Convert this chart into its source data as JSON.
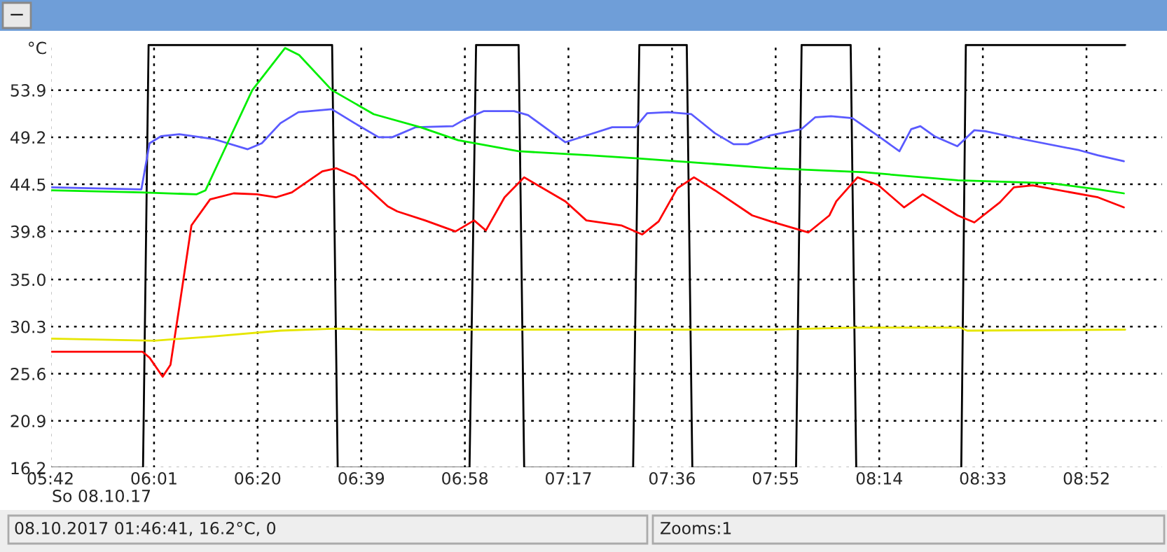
{
  "chart_data": {
    "type": "line",
    "ylabel": "°C",
    "annotations": [
      "So 08.10.17",
      "08.10.2017 01:46:41, 16.2°C, 0",
      "Zooms:1",
      "−"
    ],
    "xlim": [
      5.7,
      9.1
    ],
    "xticks": [
      {
        "value": 5.7,
        "label": "05:42"
      },
      {
        "value": 6.0167,
        "label": "06:01"
      },
      {
        "value": 6.3333,
        "label": "06:20"
      },
      {
        "value": 6.65,
        "label": "06:39"
      },
      {
        "value": 6.9667,
        "label": "06:58"
      },
      {
        "value": 7.2833,
        "label": "07:17"
      },
      {
        "value": 7.6,
        "label": "07:36"
      },
      {
        "value": 7.9167,
        "label": "07:55"
      },
      {
        "value": 8.2333,
        "label": "08:14"
      },
      {
        "value": 8.55,
        "label": "08:33"
      },
      {
        "value": 8.8667,
        "label": "08:52"
      }
    ],
    "ylim": [
      16.2,
      58.6
    ],
    "yticks": [
      16.2,
      20.9,
      25.6,
      30.3,
      {
        "value": 35,
        "label": "35.0"
      },
      39.8,
      44.5,
      49.2,
      53.9
    ],
    "grid": true,
    "line_style": "solid",
    "marker": "none",
    "series": [
      {
        "color": "#000000",
        "x": [
          5.7,
          5.983,
          6.0,
          6.561,
          6.578,
          6.981,
          7.001,
          7.131,
          7.148,
          7.481,
          7.5,
          7.645,
          7.662,
          7.979,
          7.996,
          8.146,
          8.163,
          8.484,
          8.498,
          8.985
        ],
        "values": [
          16.2,
          16.2,
          58.4,
          58.4,
          16.2,
          16.2,
          58.4,
          58.4,
          16.2,
          16.2,
          58.4,
          58.4,
          16.2,
          16.2,
          58.4,
          58.4,
          16.2,
          16.2,
          58.4,
          58.4
        ]
      },
      {
        "color": "#5a5aff",
        "x": [
          5.7,
          5.978,
          6.003,
          6.038,
          6.094,
          6.201,
          6.303,
          6.346,
          6.403,
          6.458,
          6.56,
          6.63,
          6.703,
          6.745,
          6.817,
          6.93,
          6.967,
          7.024,
          7.117,
          7.16,
          7.274,
          7.331,
          7.417,
          7.488,
          7.524,
          7.588,
          7.659,
          7.731,
          7.788,
          7.831,
          7.902,
          7.995,
          8.038,
          8.086,
          8.151,
          8.231,
          8.295,
          8.331,
          8.359,
          8.402,
          8.472,
          8.524,
          8.558,
          8.673,
          8.845,
          8.901,
          8.981
        ],
        "values": [
          44.2,
          44.0,
          48.6,
          49.3,
          49.5,
          49.0,
          48.0,
          48.6,
          50.6,
          51.7,
          52.0,
          50.6,
          49.2,
          49.2,
          50.2,
          50.3,
          51.0,
          51.8,
          51.8,
          51.4,
          48.7,
          49.3,
          50.2,
          50.2,
          51.6,
          51.7,
          51.5,
          49.6,
          48.5,
          48.5,
          49.4,
          50.0,
          51.2,
          51.3,
          51.1,
          49.3,
          47.8,
          50.0,
          50.3,
          49.3,
          48.3,
          49.9,
          49.8,
          49.0,
          47.9,
          47.4,
          46.8
        ]
      },
      {
        "color": "#00ee00",
        "x": [
          5.7,
          5.974,
          6.146,
          6.174,
          6.231,
          6.317,
          6.417,
          6.46,
          6.56,
          6.688,
          6.831,
          6.946,
          7.131,
          7.345,
          7.488,
          7.702,
          7.902,
          8.188,
          8.473,
          8.759,
          8.902,
          8.981
        ],
        "values": [
          43.9,
          43.7,
          43.5,
          43.9,
          47.9,
          53.9,
          58.1,
          57.4,
          53.9,
          51.5,
          50.2,
          48.9,
          47.8,
          47.4,
          47.1,
          46.6,
          46.1,
          45.7,
          44.9,
          44.6,
          44.0,
          43.6
        ]
      },
      {
        "color": "#ff0000",
        "x": [
          5.7,
          5.981,
          6.003,
          6.043,
          6.067,
          6.095,
          6.131,
          6.188,
          6.26,
          6.331,
          6.389,
          6.438,
          6.531,
          6.574,
          6.631,
          6.731,
          6.76,
          6.845,
          6.938,
          6.995,
          7.031,
          7.088,
          7.148,
          7.274,
          7.338,
          7.445,
          7.509,
          7.559,
          7.616,
          7.667,
          7.731,
          7.845,
          7.902,
          8.017,
          8.081,
          8.102,
          8.167,
          8.231,
          8.309,
          8.366,
          8.473,
          8.524,
          8.602,
          8.645,
          8.702,
          8.902,
          8.981
        ],
        "values": [
          27.8,
          27.8,
          27.2,
          25.3,
          26.5,
          32.5,
          40.4,
          43.0,
          43.6,
          43.5,
          43.2,
          43.7,
          45.8,
          46.1,
          45.3,
          42.3,
          41.8,
          40.9,
          39.8,
          40.9,
          39.9,
          43.2,
          45.2,
          42.8,
          40.9,
          40.4,
          39.5,
          40.8,
          44.1,
          45.2,
          43.9,
          41.4,
          40.8,
          39.7,
          41.4,
          42.8,
          45.2,
          44.4,
          42.2,
          43.5,
          41.4,
          40.7,
          42.7,
          44.2,
          44.4,
          43.2,
          42.2
        ]
      },
      {
        "color": "#e6e600",
        "x": [
          5.7,
          6.017,
          6.188,
          6.403,
          6.574,
          6.703,
          7.902,
          8.159,
          8.481,
          8.502,
          8.985
        ],
        "values": [
          29.1,
          28.9,
          29.3,
          29.9,
          30.1,
          30.0,
          30.0,
          30.2,
          30.2,
          29.9,
          30.0
        ]
      }
    ]
  }
}
